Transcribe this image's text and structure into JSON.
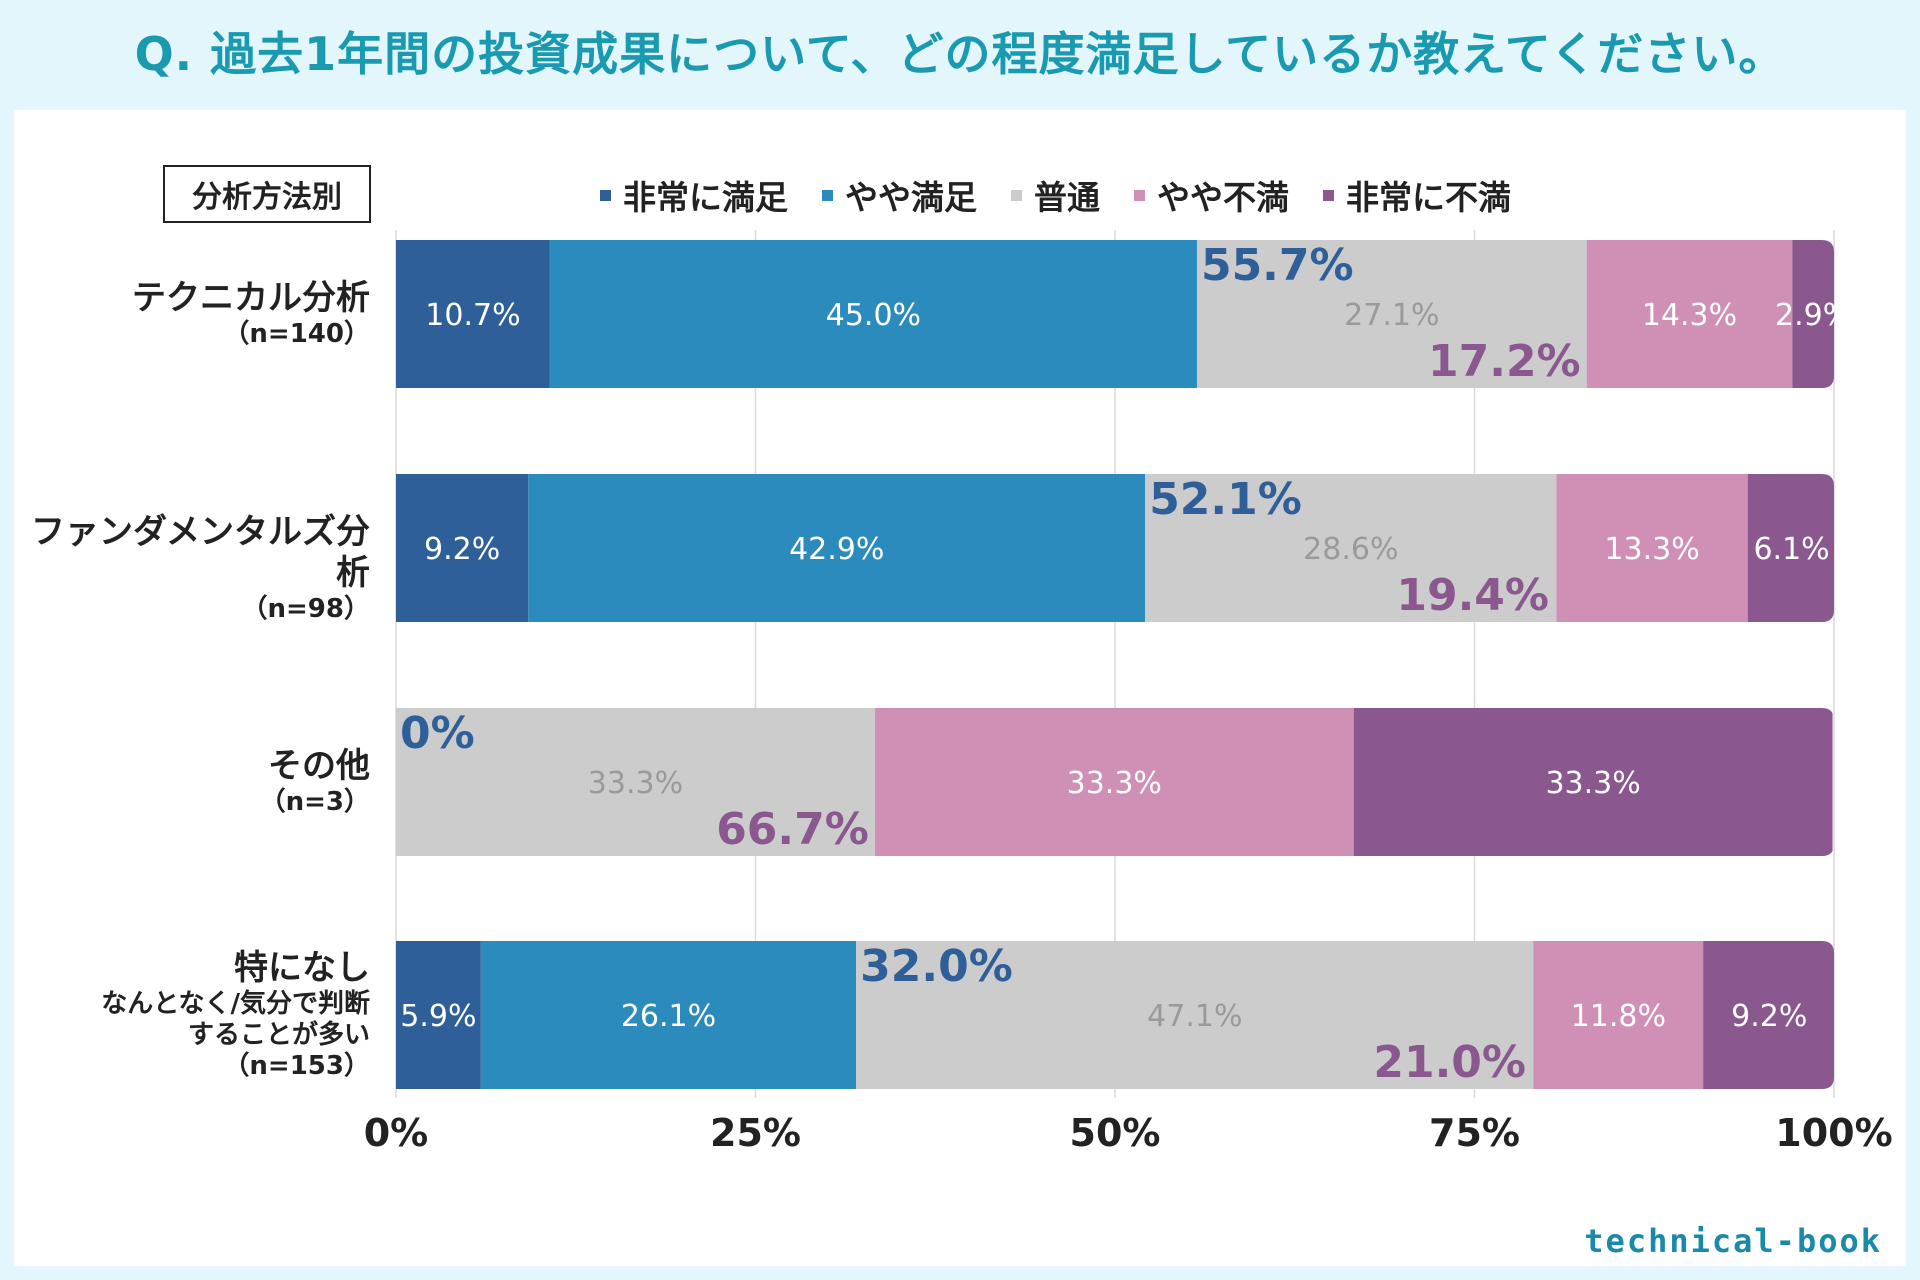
{
  "title": "Q. 過去1年間の投資成果について、どの程度満足しているか教えてください。",
  "tag": "分析方法別",
  "logo": "technical-book",
  "colors": {
    "very_satisfied": "#2f5f98",
    "somewhat_satisfied": "#2c8bbd",
    "neutral": "#cccccc",
    "somewhat_dissatisfied": "#d08fb4",
    "very_dissatisfied": "#8a588f",
    "satisfied_total_text": "#2f5f98",
    "dissatisfied_total_text": "#8a588f"
  },
  "chart_data": {
    "type": "bar",
    "orientation": "horizontal",
    "stacked": true,
    "xlim": [
      0,
      100
    ],
    "xticks": [
      "0%",
      "25%",
      "50%",
      "75%",
      "100%"
    ],
    "xtick_values": [
      0,
      25,
      50,
      75,
      100
    ],
    "legend": [
      "非常に満足",
      "やや満足",
      "普通",
      "やや不満",
      "非常に不満"
    ],
    "legend_placement": "top",
    "categories": [
      {
        "name": "テクニカル分析",
        "sub": [],
        "n": "（n=140）"
      },
      {
        "name": "ファンダメンタルズ分析",
        "sub": [],
        "n": "（n=98）"
      },
      {
        "name": "その他",
        "sub": [],
        "n": "（n=3）"
      },
      {
        "name": "特になし",
        "sub": [
          "なんとなく/気分で判断",
          "することが多い"
        ],
        "n": "（n=153）"
      }
    ],
    "series": [
      {
        "name": "非常に満足",
        "values": [
          10.7,
          9.2,
          0,
          5.9
        ],
        "labels": [
          "10.7%",
          "9.2%",
          "",
          "5.9%"
        ]
      },
      {
        "name": "やや満足",
        "values": [
          45.0,
          42.9,
          0,
          26.1
        ],
        "labels": [
          "45.0%",
          "42.9%",
          "",
          "26.1%"
        ]
      },
      {
        "name": "普通",
        "values": [
          27.1,
          28.6,
          33.3,
          47.1
        ],
        "labels": [
          "27.1%",
          "28.6%",
          "33.3%",
          "47.1%"
        ]
      },
      {
        "name": "やや不満",
        "values": [
          14.3,
          13.3,
          33.3,
          11.8
        ],
        "labels": [
          "14.3%",
          "13.3%",
          "33.3%",
          "11.8%"
        ]
      },
      {
        "name": "非常に不満",
        "values": [
          2.9,
          6.1,
          33.3,
          9.2
        ],
        "labels": [
          "2.9%",
          "6.1%",
          "33.3%",
          "9.2%"
        ]
      }
    ],
    "satisfied_totals": [
      "55.7%",
      "52.1%",
      "0%",
      "32.0%"
    ],
    "satisfied_total_values": [
      55.7,
      52.1,
      0,
      32.0
    ],
    "dissatisfied_totals": [
      "17.2%",
      "19.4%",
      "66.7%",
      "21.0%"
    ],
    "dissatisfied_total_values": [
      17.2,
      19.4,
      66.7,
      21.0
    ],
    "grid": true
  }
}
